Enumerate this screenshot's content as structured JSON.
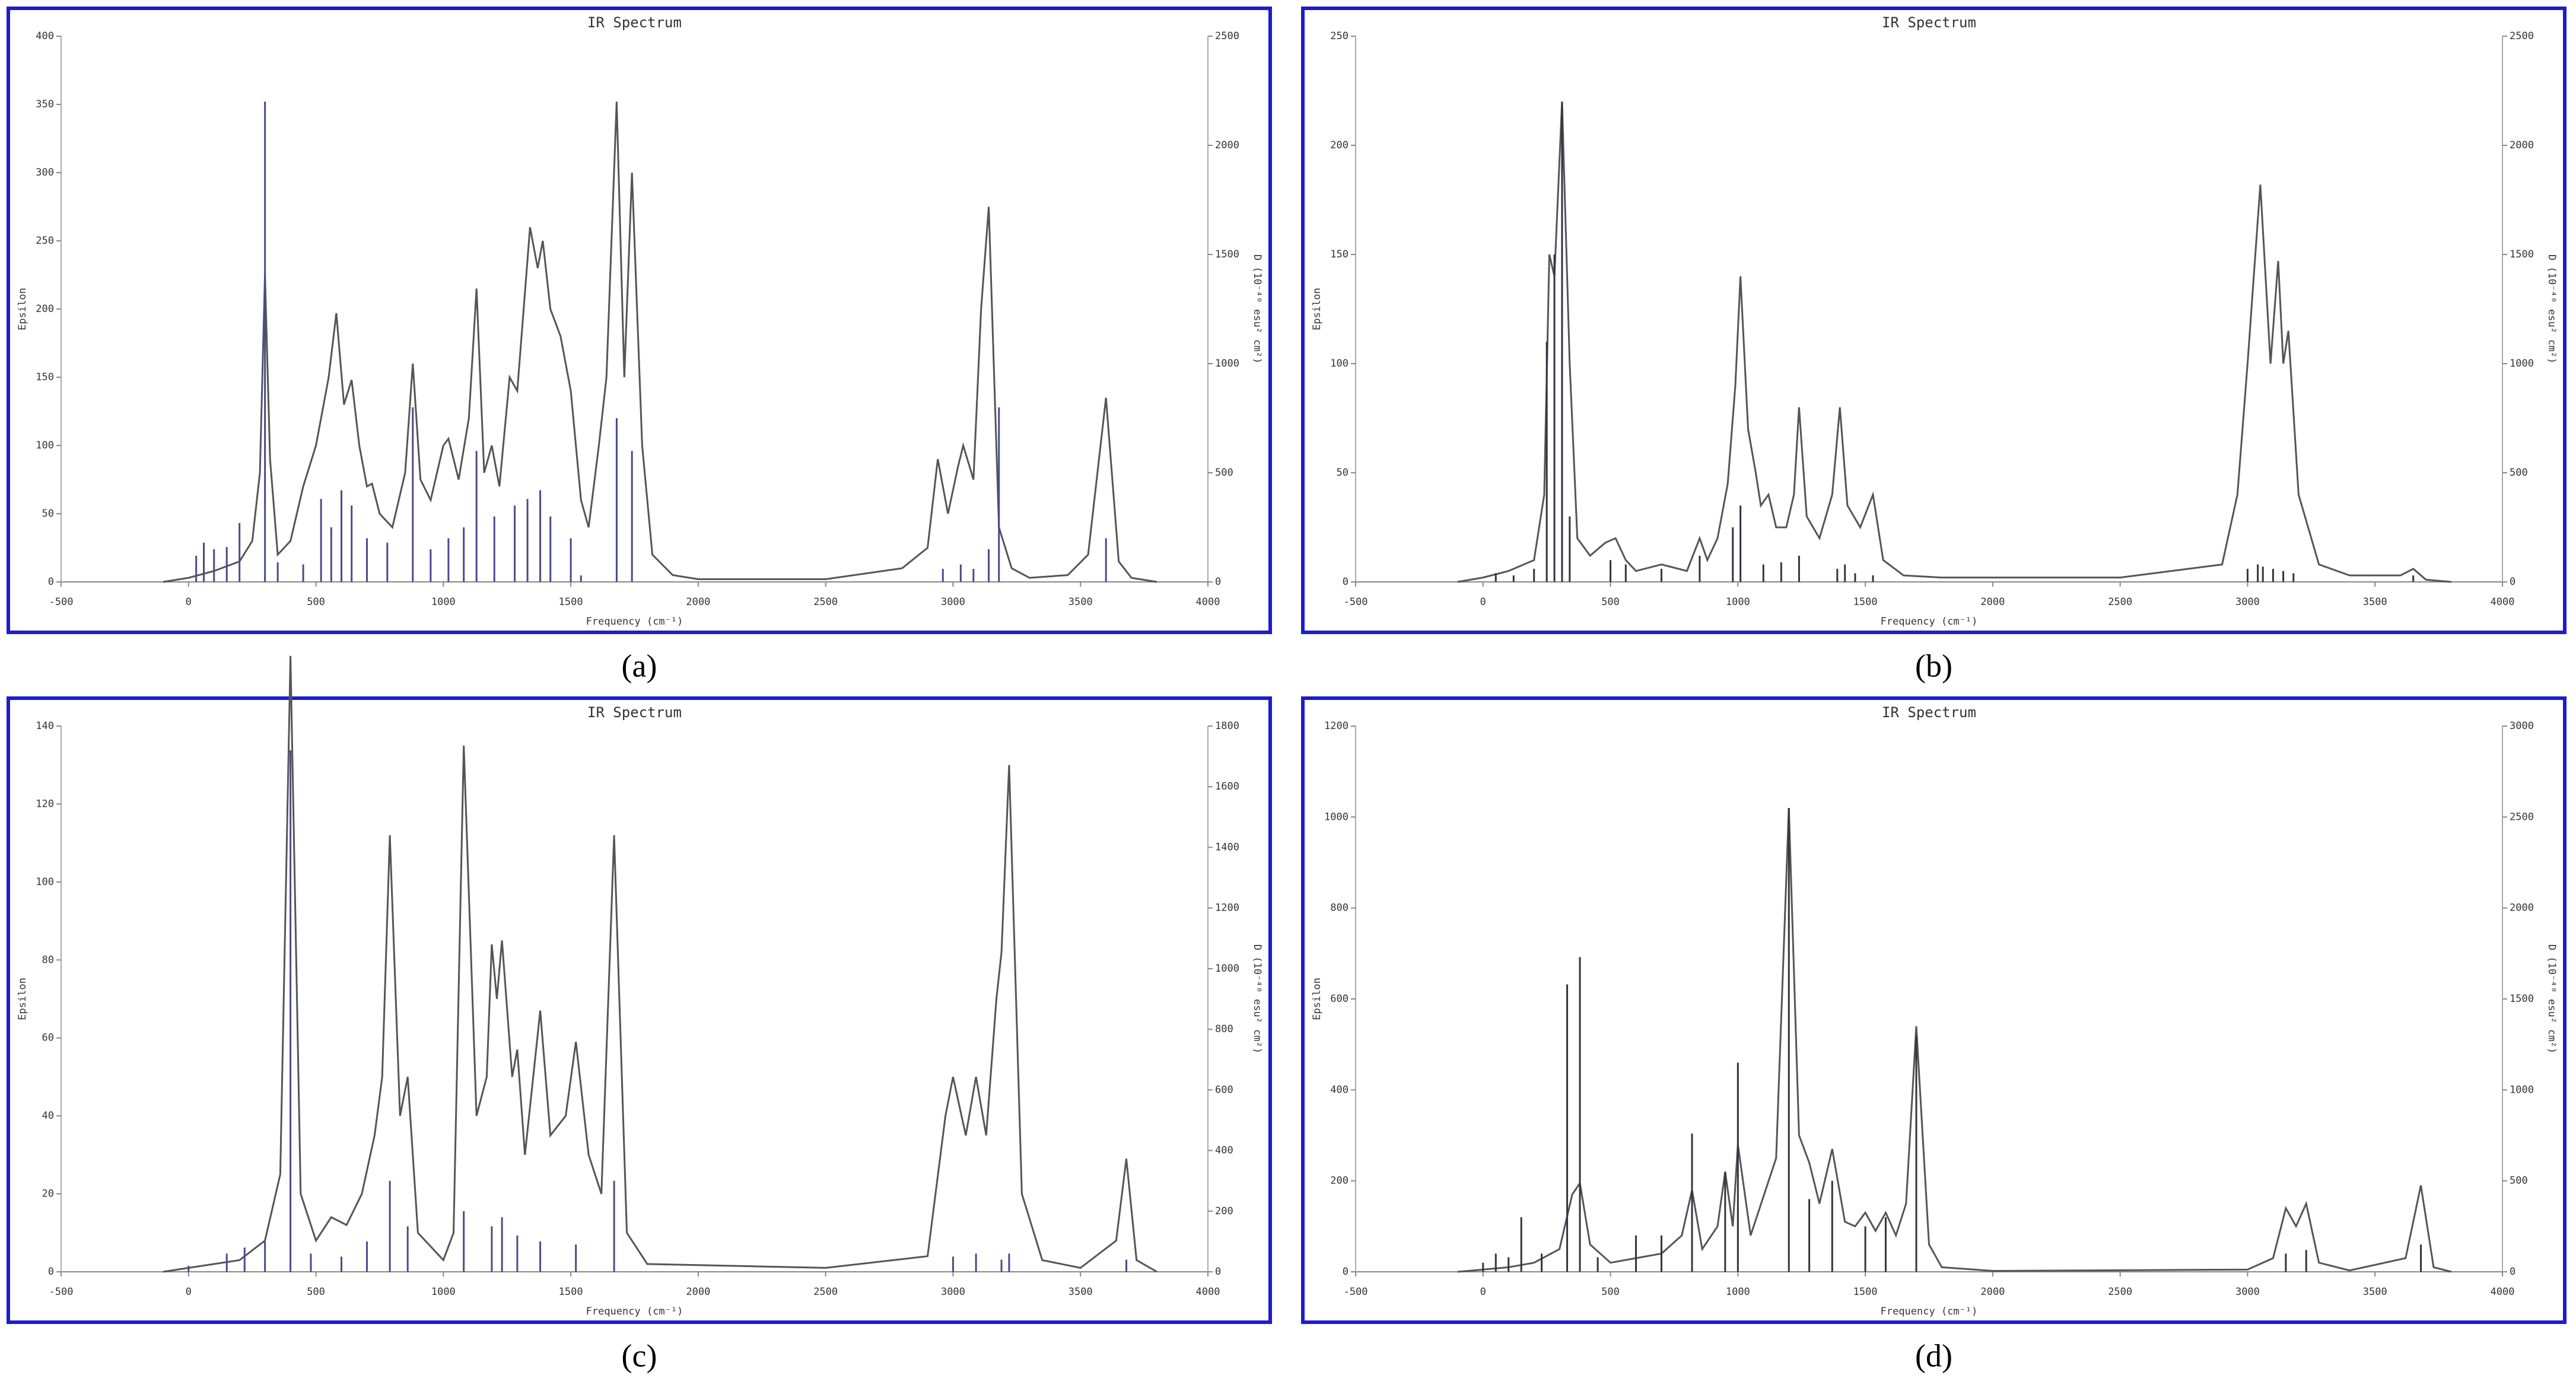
{
  "chart_data": [
    {
      "type": "line",
      "panel_label": "(a)",
      "title": "IR Spectrum",
      "xlabel": "Frequency (cm⁻¹)",
      "ylabel": "Epsilon",
      "y2label": "D (10⁻⁴⁰ esu² cm²)",
      "xlim": [
        -500,
        4000
      ],
      "xticks": [
        -500,
        0,
        500,
        1000,
        1500,
        2000,
        2500,
        3000,
        3500,
        4000
      ],
      "ylim": [
        0,
        400
      ],
      "yticks": [
        0,
        50,
        100,
        150,
        200,
        250,
        300,
        350,
        400
      ],
      "y2lim": [
        0,
        2500
      ],
      "y2ticks": [
        0,
        500,
        1000,
        1500,
        2000,
        2500
      ],
      "series": [
        {
          "color": "#555555",
          "x": [
            -100,
            0,
            100,
            200,
            250,
            280,
            300,
            320,
            350,
            400,
            450,
            500,
            550,
            580,
            610,
            640,
            670,
            700,
            720,
            750,
            800,
            850,
            880,
            910,
            950,
            1000,
            1020,
            1060,
            1100,
            1130,
            1160,
            1190,
            1220,
            1260,
            1290,
            1340,
            1370,
            1390,
            1420,
            1460,
            1500,
            1540,
            1570,
            1610,
            1640,
            1680,
            1710,
            1740,
            1780,
            1820,
            1900,
            2000,
            2500,
            2800,
            2900,
            2940,
            2980,
            3020,
            3040,
            3080,
            3110,
            3140,
            3180,
            3230,
            3300,
            3450,
            3530,
            3600,
            3650,
            3700,
            3800
          ],
          "values": [
            0,
            3,
            8,
            15,
            30,
            80,
            225,
            90,
            20,
            30,
            70,
            100,
            150,
            197,
            130,
            148,
            100,
            70,
            72,
            50,
            40,
            80,
            160,
            75,
            60,
            100,
            105,
            75,
            120,
            215,
            80,
            100,
            70,
            150,
            140,
            260,
            230,
            250,
            200,
            180,
            140,
            60,
            40,
            100,
            150,
            352,
            150,
            300,
            100,
            20,
            5,
            2,
            2,
            10,
            25,
            90,
            50,
            85,
            100,
            75,
            200,
            275,
            40,
            10,
            3,
            5,
            20,
            135,
            15,
            3,
            0
          ]
        },
        {
          "type": "stick",
          "axis": "y2",
          "color": "#4a4a8a",
          "x": [
            30,
            60,
            100,
            150,
            200,
            300,
            350,
            450,
            520,
            560,
            600,
            640,
            700,
            780,
            880,
            950,
            1020,
            1080,
            1130,
            1200,
            1280,
            1330,
            1380,
            1420,
            1500,
            1540,
            1680,
            1740,
            2960,
            3030,
            3080,
            3140,
            3180,
            3600
          ],
          "values": [
            120,
            180,
            150,
            160,
            270,
            2200,
            90,
            80,
            380,
            250,
            420,
            350,
            200,
            180,
            800,
            150,
            200,
            250,
            600,
            300,
            350,
            380,
            420,
            300,
            200,
            30,
            750,
            600,
            60,
            80,
            60,
            150,
            800,
            200
          ]
        }
      ]
    },
    {
      "type": "line",
      "panel_label": "(b)",
      "title": "IR Spectrum",
      "xlabel": "Frequency (cm⁻¹)",
      "ylabel": "Epsilon",
      "y2label": "D (10⁻⁴⁰ esu² cm²)",
      "xlim": [
        -500,
        4000
      ],
      "xticks": [
        -500,
        0,
        500,
        1000,
        1500,
        2000,
        2500,
        3000,
        3500,
        4000
      ],
      "ylim": [
        0,
        250
      ],
      "yticks": [
        0,
        50,
        100,
        150,
        200,
        250
      ],
      "y2lim": [
        0,
        2500
      ],
      "y2ticks": [
        0,
        500,
        1000,
        1500,
        2000,
        2500
      ],
      "series": [
        {
          "color": "#555555",
          "x": [
            -100,
            0,
            100,
            200,
            240,
            260,
            280,
            310,
            340,
            370,
            420,
            480,
            520,
            560,
            600,
            700,
            800,
            850,
            880,
            920,
            960,
            990,
            1010,
            1040,
            1070,
            1090,
            1120,
            1150,
            1190,
            1220,
            1240,
            1270,
            1320,
            1370,
            1400,
            1430,
            1480,
            1530,
            1570,
            1650,
            1800,
            2500,
            2900,
            2960,
            3000,
            3050,
            3090,
            3120,
            3140,
            3160,
            3200,
            3280,
            3400,
            3600,
            3650,
            3700,
            3800
          ],
          "values": [
            0,
            2,
            5,
            10,
            40,
            150,
            140,
            220,
            100,
            20,
            12,
            18,
            20,
            10,
            5,
            8,
            5,
            20,
            10,
            20,
            45,
            90,
            140,
            70,
            50,
            35,
            40,
            25,
            25,
            40,
            80,
            30,
            20,
            40,
            80,
            35,
            25,
            40,
            10,
            3,
            2,
            2,
            8,
            40,
            100,
            182,
            100,
            147,
            100,
            115,
            40,
            8,
            3,
            3,
            6,
            1,
            0
          ]
        },
        {
          "type": "stick",
          "axis": "y2",
          "color": "#333344",
          "x": [
            50,
            120,
            200,
            250,
            280,
            310,
            340,
            500,
            560,
            700,
            850,
            980,
            1010,
            1100,
            1170,
            1240,
            1390,
            1420,
            1460,
            1530,
            3000,
            3040,
            3060,
            3100,
            3140,
            3180,
            3650
          ],
          "values": [
            40,
            30,
            60,
            1100,
            1500,
            2200,
            300,
            100,
            80,
            60,
            120,
            250,
            350,
            80,
            90,
            120,
            60,
            80,
            40,
            30,
            60,
            80,
            70,
            60,
            50,
            40,
            30
          ]
        }
      ]
    },
    {
      "type": "line",
      "panel_label": "(c)",
      "title": "IR Spectrum",
      "xlabel": "Frequency (cm⁻¹)",
      "ylabel": "Epsilon",
      "y2label": "D (10⁻⁴⁰ esu² cm²)",
      "xlim": [
        -500,
        4000
      ],
      "xticks": [
        -500,
        0,
        500,
        1000,
        1500,
        2000,
        2500,
        3000,
        3500,
        4000
      ],
      "ylim": [
        0,
        140
      ],
      "yticks": [
        0,
        20,
        40,
        60,
        80,
        100,
        120,
        140
      ],
      "y2lim": [
        0,
        1800
      ],
      "y2ticks": [
        0,
        200,
        400,
        600,
        800,
        1000,
        1200,
        1400,
        1600,
        1800
      ],
      "series": [
        {
          "color": "#555555",
          "x": [
            -100,
            0,
            100,
            200,
            300,
            360,
            400,
            440,
            500,
            560,
            620,
            680,
            730,
            760,
            790,
            830,
            860,
            900,
            1000,
            1040,
            1080,
            1130,
            1170,
            1190,
            1210,
            1230,
            1270,
            1290,
            1320,
            1380,
            1420,
            1480,
            1520,
            1570,
            1620,
            1670,
            1720,
            1800,
            2500,
            2900,
            2970,
            3000,
            3050,
            3090,
            3130,
            3170,
            3190,
            3220,
            3270,
            3350,
            3500,
            3640,
            3680,
            3720,
            3800
          ],
          "values": [
            0,
            1,
            2,
            3,
            8,
            25,
            158,
            20,
            8,
            14,
            12,
            20,
            35,
            50,
            112,
            40,
            50,
            10,
            3,
            10,
            135,
            40,
            50,
            84,
            70,
            85,
            50,
            57,
            30,
            67,
            35,
            40,
            59,
            30,
            20,
            112,
            10,
            2,
            1,
            4,
            40,
            50,
            35,
            50,
            35,
            70,
            82,
            130,
            20,
            3,
            1,
            8,
            29,
            3,
            0
          ]
        },
        {
          "type": "stick",
          "axis": "y2",
          "color": "#4a4a8a",
          "x": [
            0,
            150,
            220,
            300,
            400,
            480,
            600,
            700,
            790,
            860,
            1080,
            1190,
            1230,
            1290,
            1380,
            1520,
            1670,
            3000,
            3090,
            3190,
            3220,
            3680
          ],
          "values": [
            20,
            60,
            80,
            100,
            1720,
            60,
            50,
            100,
            300,
            150,
            200,
            150,
            180,
            120,
            100,
            90,
            300,
            50,
            60,
            40,
            60,
            40
          ]
        }
      ]
    },
    {
      "type": "line",
      "panel_label": "(d)",
      "title": "IR Spectrum",
      "xlabel": "Frequency (cm⁻¹)",
      "ylabel": "Epsilon",
      "y2label": "D (10⁻⁴⁰ esu² cm²)",
      "xlim": [
        -500,
        4000
      ],
      "xticks": [
        -500,
        0,
        500,
        1000,
        1500,
        2000,
        2500,
        3000,
        3500,
        4000
      ],
      "ylim": [
        0,
        1200
      ],
      "yticks": [
        0,
        200,
        400,
        600,
        800,
        1000,
        1200
      ],
      "y2lim": [
        0,
        3000
      ],
      "y2ticks": [
        0,
        500,
        1000,
        1500,
        2000,
        2500,
        3000
      ],
      "series": [
        {
          "color": "#555555",
          "x": [
            -100,
            0,
            100,
            200,
            300,
            350,
            380,
            420,
            500,
            600,
            700,
            780,
            820,
            860,
            920,
            950,
            980,
            1000,
            1050,
            1150,
            1200,
            1240,
            1280,
            1320,
            1370,
            1420,
            1460,
            1500,
            1540,
            1580,
            1620,
            1660,
            1700,
            1750,
            1800,
            2000,
            3000,
            3100,
            3150,
            3190,
            3230,
            3280,
            3400,
            3620,
            3680,
            3730,
            3800
          ],
          "values": [
            0,
            5,
            10,
            20,
            50,
            170,
            195,
            60,
            20,
            30,
            40,
            80,
            180,
            50,
            100,
            220,
            100,
            280,
            80,
            250,
            1020,
            300,
            240,
            150,
            270,
            110,
            100,
            130,
            90,
            130,
            80,
            150,
            540,
            60,
            10,
            2,
            5,
            30,
            140,
            100,
            150,
            20,
            3,
            30,
            190,
            10,
            0
          ]
        },
        {
          "type": "stick",
          "axis": "y2",
          "color": "#333344",
          "x": [
            0,
            50,
            100,
            150,
            230,
            330,
            380,
            450,
            600,
            700,
            820,
            950,
            1000,
            1200,
            1280,
            1370,
            1500,
            1580,
            1700,
            3150,
            3230,
            3680
          ],
          "values": [
            50,
            100,
            80,
            300,
            100,
            1580,
            1730,
            80,
            200,
            200,
            760,
            550,
            1150,
            2550,
            400,
            500,
            250,
            300,
            1300,
            100,
            120,
            150
          ]
        }
      ]
    }
  ]
}
